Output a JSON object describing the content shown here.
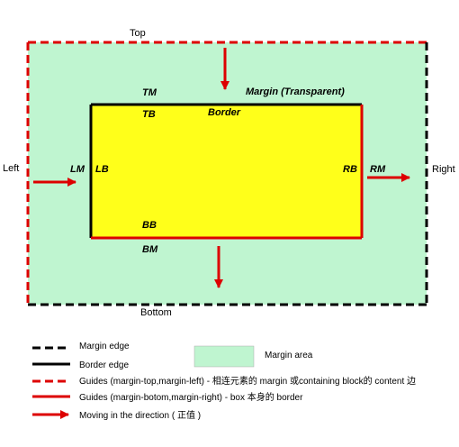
{
  "diagram": {
    "edge_labels": {
      "top": "Top",
      "bottom": "Bottom",
      "left": "Left",
      "right": "Right"
    },
    "box_labels": {
      "tm": "TM",
      "tb": "TB",
      "bb": "BB",
      "bm": "BM",
      "lm": "LM",
      "lb": "LB",
      "rb": "RB",
      "rm": "RM",
      "border": "Border",
      "margin_transparent": "Margin (Transparent)"
    },
    "colors": {
      "margin_fill": "#bff5d0",
      "border_fill": "#ffff1a",
      "red": "#dd0000",
      "black": "#000000"
    }
  },
  "legend": {
    "margin_edge": "Margin edge",
    "border_edge": "Border edge",
    "guides_top_left": "Guides (margin-top,margin-left) -  相连元素的 margin 或containing block的 content 边",
    "guides_bottom_right": "Guides (margin-botom,margin-right) - box 本身的 border",
    "moving": "Moving in the direction ( 正值 )",
    "margin_area": "Margin area"
  }
}
